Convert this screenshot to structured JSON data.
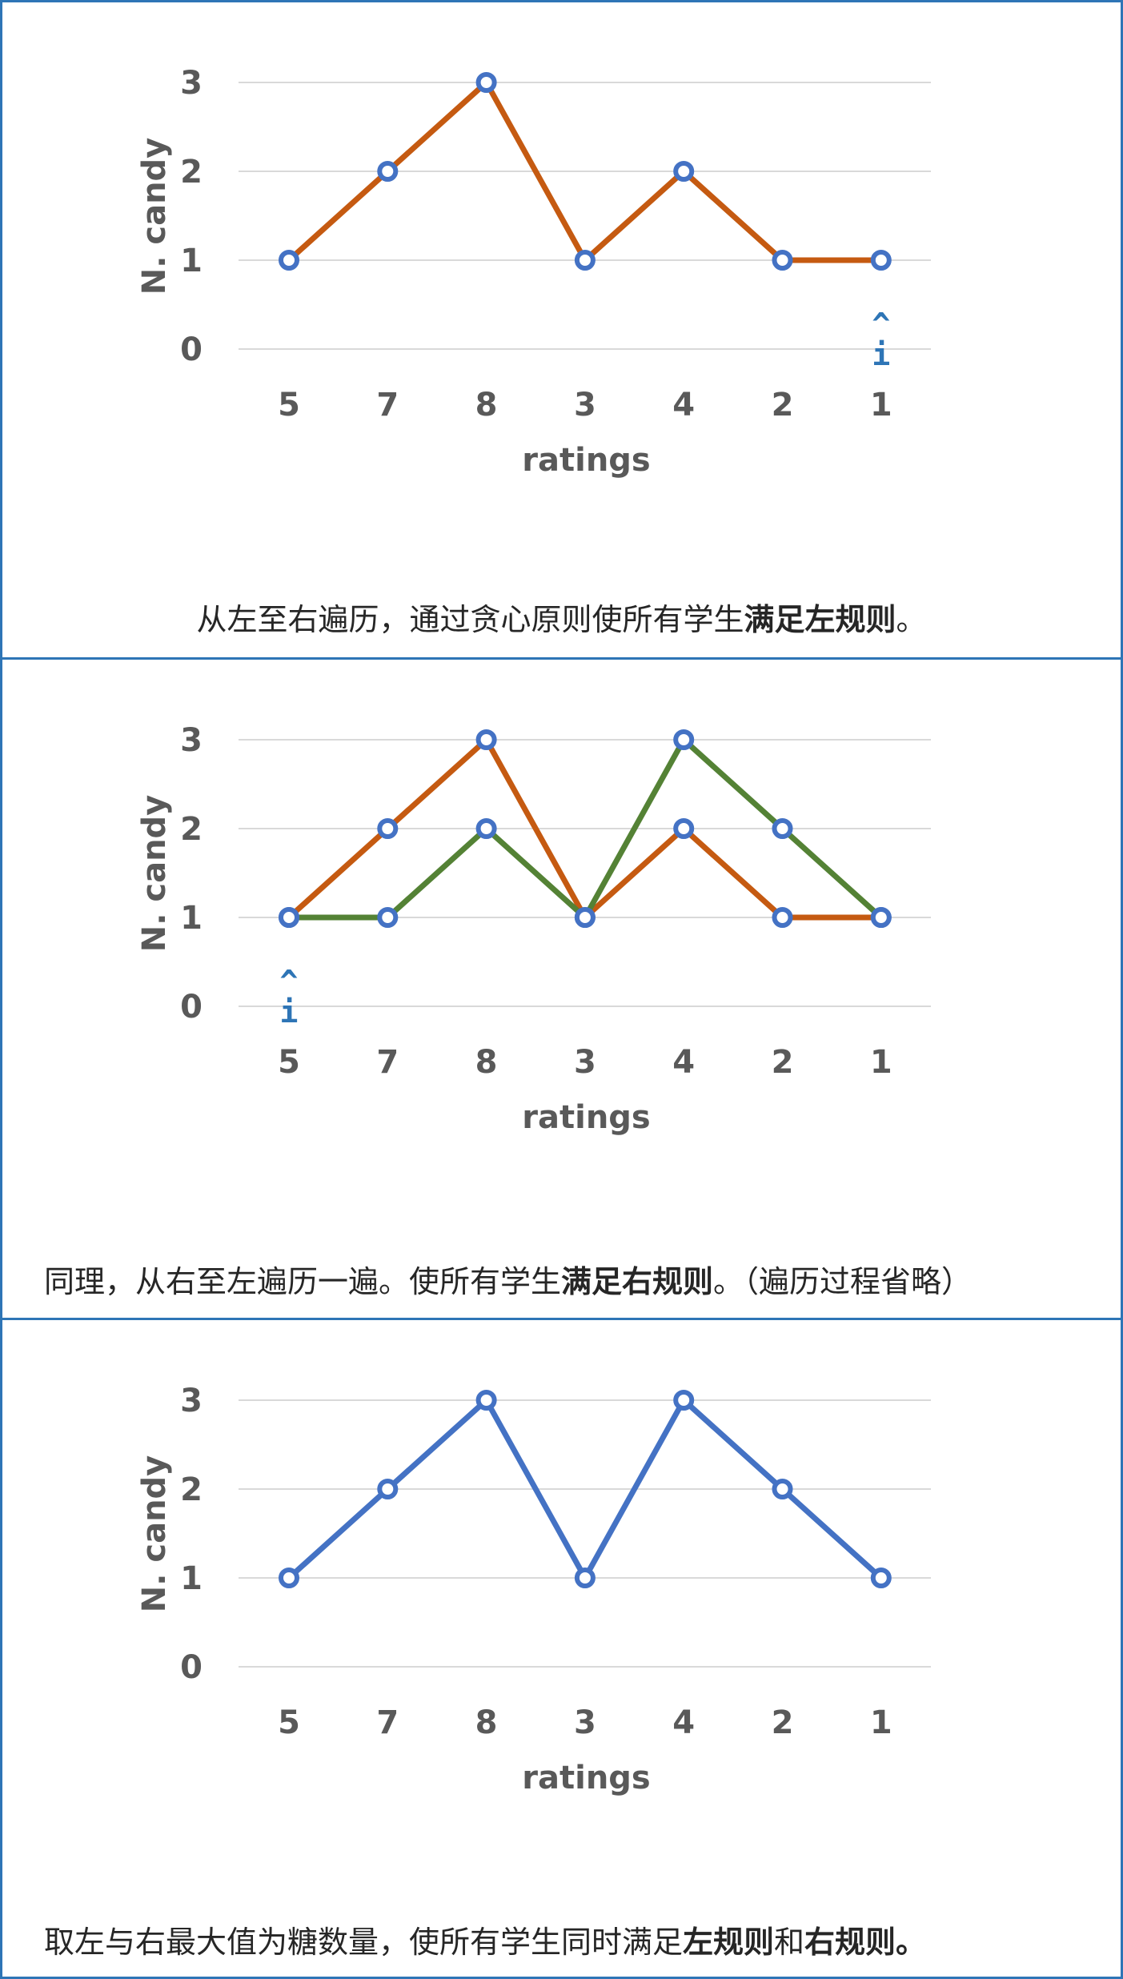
{
  "colors": {
    "border": "#2e75b6",
    "orange": "#c55a11",
    "green": "#548235",
    "blue": "#4472c4",
    "text": "#595959"
  },
  "panels": [
    {
      "caption_pre": "从左至右遍历，通过贪心原则使所有学生",
      "caption_bold1": "满足左规则",
      "caption_mid": "",
      "caption_bold2": "",
      "caption_post": "。"
    },
    {
      "caption_pre": "同理，从右至左遍历一遍。使所有学生",
      "caption_bold1": "满足右规则",
      "caption_mid": "。（遍历过程省略）",
      "caption_bold2": "",
      "caption_post": ""
    },
    {
      "caption_pre": "取左与右最大值为糖数量，使所有学生同时满足",
      "caption_bold1": "左规则",
      "caption_mid": "和",
      "caption_bold2": "右规则。",
      "caption_post": ""
    }
  ],
  "chart_data": [
    {
      "type": "line",
      "categories": [
        "5",
        "7",
        "8",
        "3",
        "4",
        "2",
        "1"
      ],
      "ylim": [
        0,
        3
      ],
      "yticks": [
        "0",
        "1",
        "2",
        "3"
      ],
      "xlabel": "ratings",
      "ylabel": "N. candy",
      "grid": true,
      "series": [
        {
          "color": "#c55a11",
          "values": [
            1,
            2,
            3,
            1,
            2,
            1,
            1
          ]
        }
      ],
      "pointer": {
        "caret": "^",
        "label": "i",
        "category_index": 6
      }
    },
    {
      "type": "line",
      "categories": [
        "5",
        "7",
        "8",
        "3",
        "4",
        "2",
        "1"
      ],
      "ylim": [
        0,
        3
      ],
      "yticks": [
        "0",
        "1",
        "2",
        "3"
      ],
      "xlabel": "ratings",
      "ylabel": "N. candy",
      "grid": true,
      "series": [
        {
          "color": "#c55a11",
          "values": [
            1,
            2,
            3,
            1,
            2,
            1,
            1
          ]
        },
        {
          "color": "#548235",
          "values": [
            1,
            1,
            2,
            1,
            3,
            2,
            1
          ]
        }
      ],
      "pointer": {
        "caret": "^",
        "label": "i",
        "category_index": 0
      }
    },
    {
      "type": "line",
      "categories": [
        "5",
        "7",
        "8",
        "3",
        "4",
        "2",
        "1"
      ],
      "ylim": [
        0,
        3
      ],
      "yticks": [
        "0",
        "1",
        "2",
        "3"
      ],
      "xlabel": "ratings",
      "ylabel": "N. candy",
      "grid": true,
      "series": [
        {
          "color": "#4472c4",
          "values": [
            1,
            2,
            3,
            1,
            3,
            2,
            1
          ]
        }
      ]
    }
  ]
}
